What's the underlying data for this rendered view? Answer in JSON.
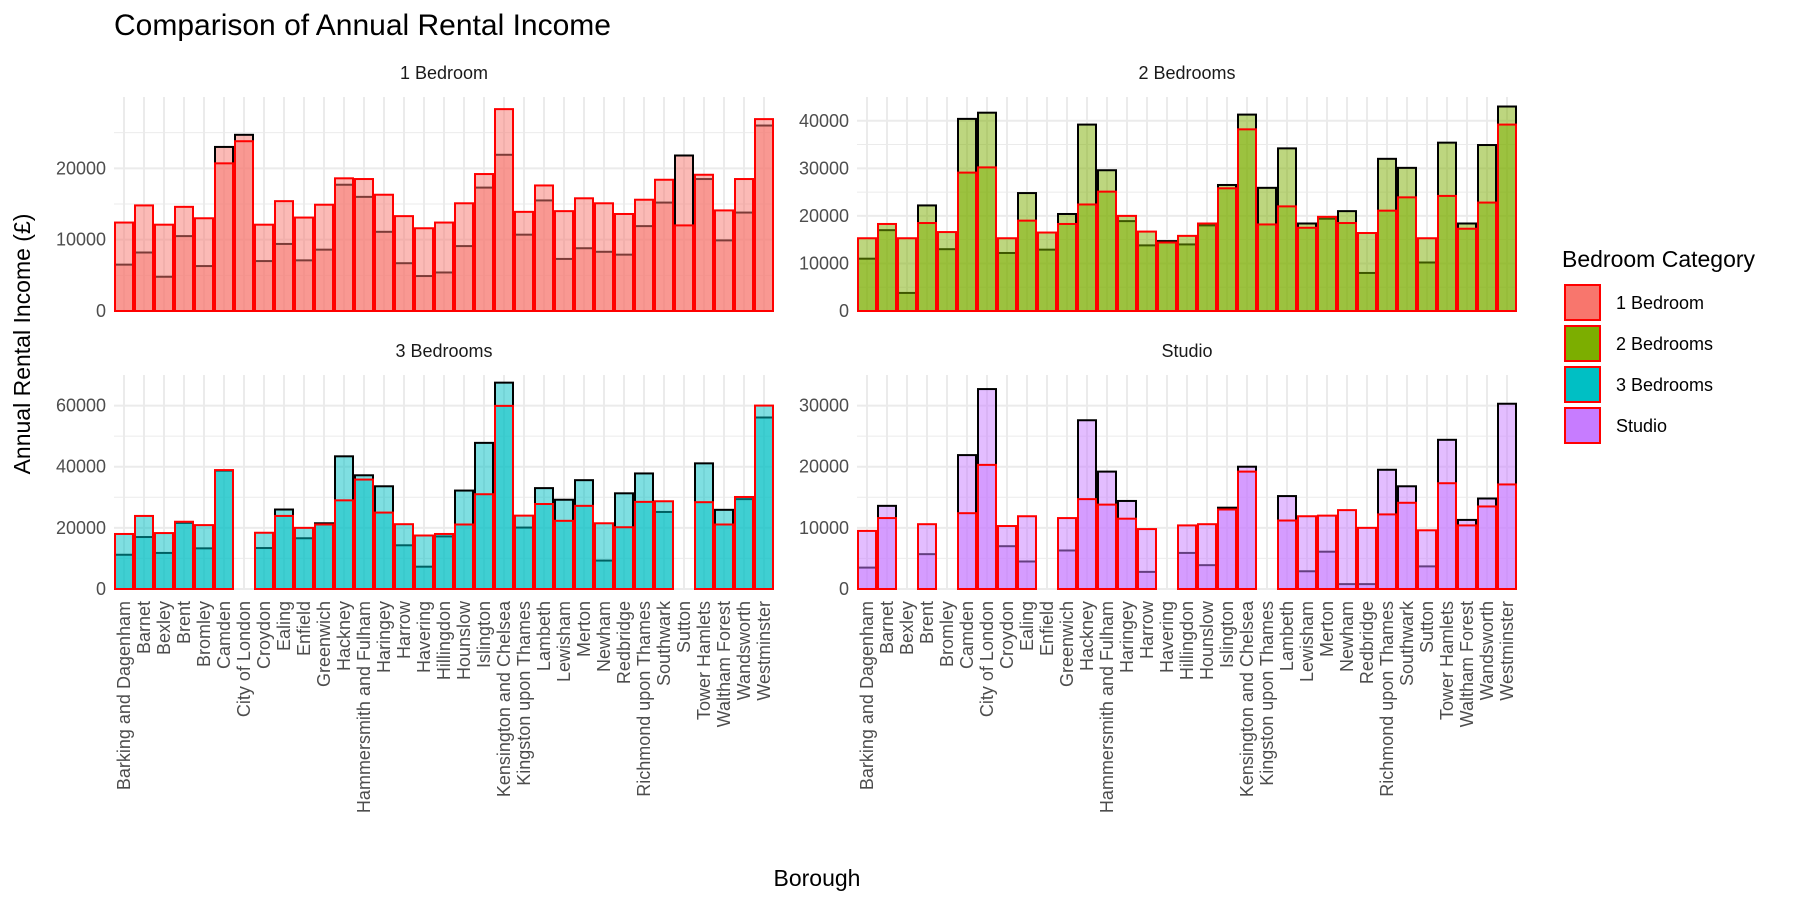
{
  "chart_data": {
    "type": "bar",
    "title": "Comparison of Annual Rental Income",
    "xlabel": "Borough",
    "ylabel": "Annual Rental Income (£)",
    "legend": {
      "title": "Bedroom Category",
      "placement": "right",
      "entries": [
        "1 Bedroom",
        "2 Bedrooms",
        "3 Bedrooms",
        "Studio"
      ]
    },
    "grid": true,
    "layers_note": "Each panel overlays two bar layers per borough: one with black outline and one with red outline.",
    "categories": [
      "Barking and Dagenham",
      "Barnet",
      "Bexley",
      "Brent",
      "Bromley",
      "Camden",
      "City of London",
      "Croydon",
      "Ealing",
      "Enfield",
      "Greenwich",
      "Hackney",
      "Hammersmith and Fulham",
      "Haringey",
      "Harrow",
      "Havering",
      "Hillingdon",
      "Hounslow",
      "Islington",
      "Kensington and Chelsea",
      "Kingston upon Thames",
      "Lambeth",
      "Lewisham",
      "Merton",
      "Newham",
      "Redbridge",
      "Richmond upon Thames",
      "Southwark",
      "Sutton",
      "Tower Hamlets",
      "Waltham Forest",
      "Wandsworth",
      "Westminster"
    ],
    "panels": [
      {
        "strip": "1 Bedroom",
        "color": "#F8766D",
        "ylim": [
          0,
          30000
        ],
        "yticks": [
          0,
          10000,
          20000
        ],
        "series": [
          {
            "outline": "#000000",
            "values": [
              6500,
              8200,
              4800,
              10500,
              6300,
              23000,
              24700,
              7000,
              9400,
              7100,
              8600,
              17700,
              16000,
              11100,
              6700,
              4900,
              5400,
              9100,
              17300,
              21900,
              10700,
              15500,
              7300,
              8800,
              8300,
              7900,
              11900,
              15200,
              21800,
              18500,
              9900,
              13800,
              26000
            ]
          },
          {
            "outline": "#FF0000",
            "values": [
              12400,
              14800,
              12100,
              14600,
              13000,
              20700,
              23800,
              12100,
              15400,
              13100,
              14900,
              18600,
              18500,
              16300,
              13300,
              11600,
              12400,
              15100,
              19200,
              28300,
              13900,
              17600,
              14000,
              15800,
              15100,
              13600,
              15600,
              18400,
              12000,
              19100,
              14100,
              18500,
              26900
            ]
          }
        ]
      },
      {
        "strip": "2 Bedrooms",
        "color": "#7CAE00",
        "ylim": [
          0,
          45000
        ],
        "yticks": [
          0,
          10000,
          20000,
          30000,
          40000
        ],
        "series": [
          {
            "outline": "#000000",
            "values": [
              11000,
              17000,
              3800,
              22200,
              13000,
              40400,
              41700,
              12200,
              24800,
              12900,
              20400,
              39200,
              29600,
              18900,
              13800,
              14700,
              14000,
              18000,
              26500,
              41300,
              25900,
              34200,
              18400,
              19400,
              21000,
              8000,
              32000,
              30100,
              10200,
              35400,
              18400,
              34900,
              43000
            ]
          },
          {
            "outline": "#FF0000",
            "values": [
              15300,
              18300,
              15300,
              18500,
              16600,
              29100,
              30200,
              15300,
              19000,
              16500,
              18300,
              22400,
              25100,
              20000,
              16700,
              14400,
              15800,
              18400,
              25800,
              38200,
              18200,
              22000,
              17500,
              19800,
              18500,
              16400,
              21100,
              23900,
              15300,
              24200,
              17300,
              22800,
              39200
            ]
          }
        ]
      },
      {
        "strip": "3 Bedrooms",
        "color": "#00BFC4",
        "ylim": [
          0,
          70000
        ],
        "yticks": [
          0,
          20000,
          40000,
          60000
        ],
        "series": [
          {
            "outline": "#000000",
            "values": [
              11200,
              17000,
              11800,
              21600,
              13300,
              38700,
              0,
              13400,
              26000,
              16600,
              21500,
              43400,
              37200,
              33600,
              14300,
              7300,
              17200,
              32200,
              47800,
              67500,
              20100,
              33000,
              29200,
              35600,
              9300,
              31300,
              37800,
              25200,
              0,
              41100,
              25900,
              29400,
              56100
            ]
          },
          {
            "outline": "#FF0000",
            "values": [
              18000,
              23900,
              18300,
              22000,
              20900,
              38900,
              0,
              18400,
              23900,
              20000,
              21100,
              29000,
              35800,
              25000,
              21200,
              17500,
              18000,
              21100,
              31000,
              59900,
              24000,
              27800,
              22300,
              27200,
              21500,
              20200,
              28500,
              28700,
              0,
              28400,
              21100,
              30100,
              60000
            ]
          }
        ]
      },
      {
        "strip": "Studio",
        "color": "#C77CFF",
        "ylim": [
          0,
          35000
        ],
        "yticks": [
          0,
          10000,
          20000,
          30000
        ],
        "series": [
          {
            "outline": "#000000",
            "values": [
              3500,
              13600,
              0,
              5700,
              0,
              21900,
              32700,
              7000,
              4500,
              0,
              6300,
              27600,
              19200,
              14400,
              2800,
              0,
              5900,
              3900,
              13300,
              20000,
              0,
              15200,
              2900,
              6100,
              800,
              800,
              19500,
              16800,
              3700,
              24400,
              11300,
              14800,
              30300
            ]
          },
          {
            "outline": "#FF0000",
            "values": [
              9500,
              11600,
              0,
              10600,
              0,
              12400,
              20300,
              10300,
              11900,
              0,
              11600,
              14700,
              13800,
              11500,
              9800,
              0,
              10400,
              10600,
              13000,
              19200,
              0,
              11200,
              11900,
              12000,
              12900,
              10000,
              12200,
              14100,
              9600,
              17300,
              10400,
              13500,
              17100
            ]
          }
        ]
      }
    ]
  }
}
